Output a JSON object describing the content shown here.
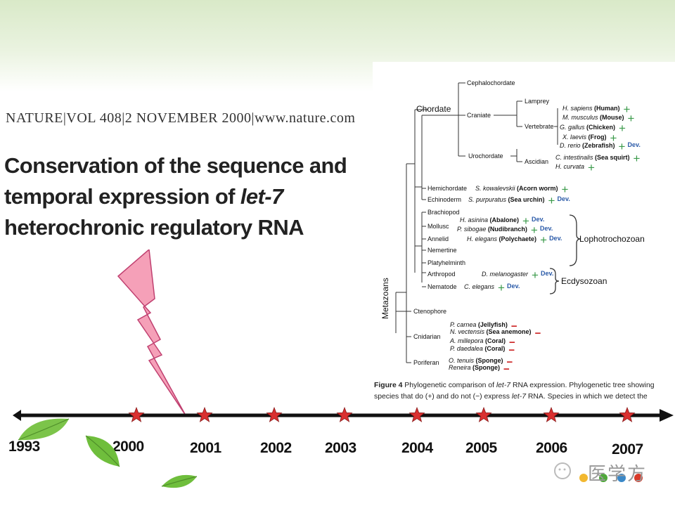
{
  "header": {
    "journal_line": "NATURE|VOL 408|2 NOVEMBER 2000|www.nature.com",
    "title_line1": "Conservation of the sequence and",
    "title_line2_pre": "temporal expression of ",
    "title_line2_em": "let-7",
    "title_line3": "heterochronic regulatory RNA"
  },
  "figure": {
    "root_label": "Metazoans",
    "groups": {
      "chordate": "Chordate",
      "cephalochordate": "Cephalochordate",
      "craniate": "Craniate",
      "lamprey": "Lamprey",
      "vertebrate": "Vertebrate",
      "urochordate": "Urochordate",
      "ascidian": "Ascidian",
      "hemichordate": "Hemichordate",
      "echinoderm": "Echinoderm",
      "brachiopod": "Brachiopod",
      "mollusc": "Mollusc",
      "annelid": "Annelid",
      "nemertine": "Nemertine",
      "platyhelminth": "Platyhelminth",
      "arthropod": "Arthropod",
      "nematode": "Nematode",
      "ctenophore": "Ctenophore",
      "cnidarian": "Cnidarian",
      "poriferan": "Poriferan",
      "lophotrochozoan": "Lophotrochozoan",
      "ecdysozoan": "Ecdysozoan"
    },
    "species": [
      {
        "sp": "H. sapiens",
        "common": "(Human)",
        "mark": "+",
        "dev": ""
      },
      {
        "sp": "M. musculus",
        "common": "(Mouse)",
        "mark": "+",
        "dev": ""
      },
      {
        "sp": "G. gallus",
        "common": "(Chicken)",
        "mark": "+",
        "dev": ""
      },
      {
        "sp": "X. laevis",
        "common": "(Frog)",
        "mark": "+",
        "dev": ""
      },
      {
        "sp": "D. rerio",
        "common": "(Zebrafish)",
        "mark": "+",
        "dev": "Dev."
      },
      {
        "sp": "C. intestinalis",
        "common": "(Sea squirt)",
        "mark": "+",
        "dev": ""
      },
      {
        "sp": "H. curvata",
        "common": "",
        "mark": "+",
        "dev": ""
      },
      {
        "sp": "S. kowalevskii",
        "common": "(Acorn worm)",
        "mark": "+",
        "dev": ""
      },
      {
        "sp": "S. purpuratus",
        "common": "(Sea urchin)",
        "mark": "+",
        "dev": "Dev."
      },
      {
        "sp": "H. asinina",
        "common": "(Abalone)",
        "mark": "+",
        "dev": "Dev."
      },
      {
        "sp": "P. sibogae",
        "common": "(Nudibranch)",
        "mark": "+",
        "dev": "Dev."
      },
      {
        "sp": "H. elegans",
        "common": "(Polychaete)",
        "mark": "+",
        "dev": "Dev."
      },
      {
        "sp": "D. melanogaster",
        "common": "",
        "mark": "+",
        "dev": "Dev."
      },
      {
        "sp": "C. elegans",
        "common": "",
        "mark": "+",
        "dev": "Dev."
      },
      {
        "sp": "P. carnea",
        "common": "(Jellyfish)",
        "mark": "−",
        "dev": ""
      },
      {
        "sp": "N. vectensis",
        "common": "(Sea anemone)",
        "mark": "−",
        "dev": ""
      },
      {
        "sp": "A. millepora",
        "common": "(Coral)",
        "mark": "−",
        "dev": ""
      },
      {
        "sp": "P. daedalea",
        "common": "(Coral)",
        "mark": "−",
        "dev": ""
      },
      {
        "sp": "O. tenuis",
        "common": "(Sponge)",
        "mark": "−",
        "dev": ""
      },
      {
        "sp": "Reneira",
        "common": "(Sponge)",
        "mark": "−",
        "dev": ""
      }
    ],
    "caption_label": "Figure 4",
    "caption_1": " Phylogenetic comparison of ",
    "caption_em1": "let-7",
    "caption_2": " RNA expression. Phylogenetic tree showing species that do (+) and do not (−) express ",
    "caption_em2": "let-7",
    "caption_3": " RNA. Species in which we detect the"
  },
  "timeline": {
    "years": [
      "1993",
      "2000",
      "2001",
      "2002",
      "2003",
      "2004",
      "2005",
      "2006",
      "2007"
    ]
  },
  "watermark": {
    "text": "医学方"
  },
  "colors": {
    "accent_green": "#3a9a4a",
    "minus_red": "#cc2222",
    "dev_blue": "#2a5aa8",
    "star_red": "#d93030",
    "lightning_pink": "#f5a0b8"
  }
}
